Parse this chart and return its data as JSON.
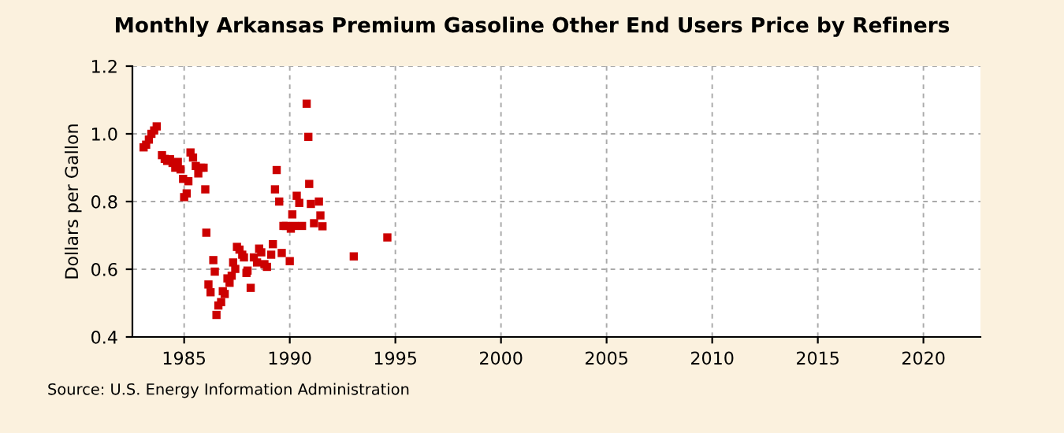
{
  "chart_data": {
    "type": "scatter",
    "title": "Monthly Arkansas Premium Gasoline Other End Users Price by Refiners",
    "ylabel": "Dollars per Gallon",
    "annotations": [
      "Source: U.S. Energy Information Administration"
    ],
    "xlim": [
      1982.55,
      2022.7
    ],
    "xticks": [
      1985,
      1990,
      1995,
      2000,
      2005,
      2010,
      2015,
      2020
    ],
    "ylim": [
      0.4,
      1.2
    ],
    "yticks": [
      0.4,
      0.6,
      0.8,
      {
        "value": 1,
        "label": "1.0"
      },
      1.2
    ],
    "grid": true,
    "marker": "square",
    "legend": false,
    "series": [
      {
        "color": "#cc0000",
        "x": [
          1983.08,
          1983.2,
          1983.33,
          1983.45,
          1983.58,
          1983.7,
          1983.95,
          1984.08,
          1984.2,
          1984.33,
          1984.45,
          1984.58,
          1984.7,
          1984.83,
          1984.95,
          1985.0,
          1985.12,
          1985.2,
          1985.3,
          1985.42,
          1985.55,
          1985.67,
          1985.8,
          1985.92,
          1986.0,
          1986.05,
          1986.15,
          1986.25,
          1986.38,
          1986.45,
          1986.53,
          1986.62,
          1986.75,
          1986.83,
          1986.92,
          1987.05,
          1987.15,
          1987.25,
          1987.32,
          1987.42,
          1987.5,
          1987.62,
          1987.75,
          1987.83,
          1987.95,
          1988.0,
          1988.15,
          1988.3,
          1988.45,
          1988.55,
          1988.65,
          1988.8,
          1988.92,
          1989.12,
          1989.2,
          1989.3,
          1989.38,
          1989.5,
          1989.62,
          1989.7,
          1989.82,
          1990.0,
          1990.05,
          1990.12,
          1990.2,
          1990.33,
          1990.45,
          1990.58,
          1990.8,
          1990.88,
          1990.92,
          1991.0,
          1991.15,
          1991.38,
          1991.45,
          1991.55,
          1993.03,
          1994.62
        ],
        "values": [
          0.96,
          0.968,
          0.983,
          1.0,
          1.01,
          1.022,
          0.937,
          0.926,
          0.92,
          0.925,
          0.914,
          0.9,
          0.917,
          0.895,
          0.867,
          0.813,
          0.824,
          0.86,
          0.945,
          0.93,
          0.905,
          0.883,
          0.9,
          0.9,
          0.836,
          0.708,
          0.555,
          0.532,
          0.627,
          0.593,
          0.465,
          0.493,
          0.503,
          0.535,
          0.527,
          0.573,
          0.56,
          0.581,
          0.62,
          0.601,
          0.666,
          0.658,
          0.643,
          0.635,
          0.589,
          0.596,
          0.545,
          0.635,
          0.62,
          0.661,
          0.65,
          0.615,
          0.607,
          0.643,
          0.674,
          0.836,
          0.893,
          0.8,
          0.648,
          0.728,
          0.728,
          0.624,
          0.72,
          0.762,
          0.728,
          0.817,
          0.796,
          0.728,
          1.089,
          0.991,
          0.852,
          0.793,
          0.736,
          0.8,
          0.759,
          0.727,
          0.638,
          0.694
        ]
      }
    ]
  }
}
